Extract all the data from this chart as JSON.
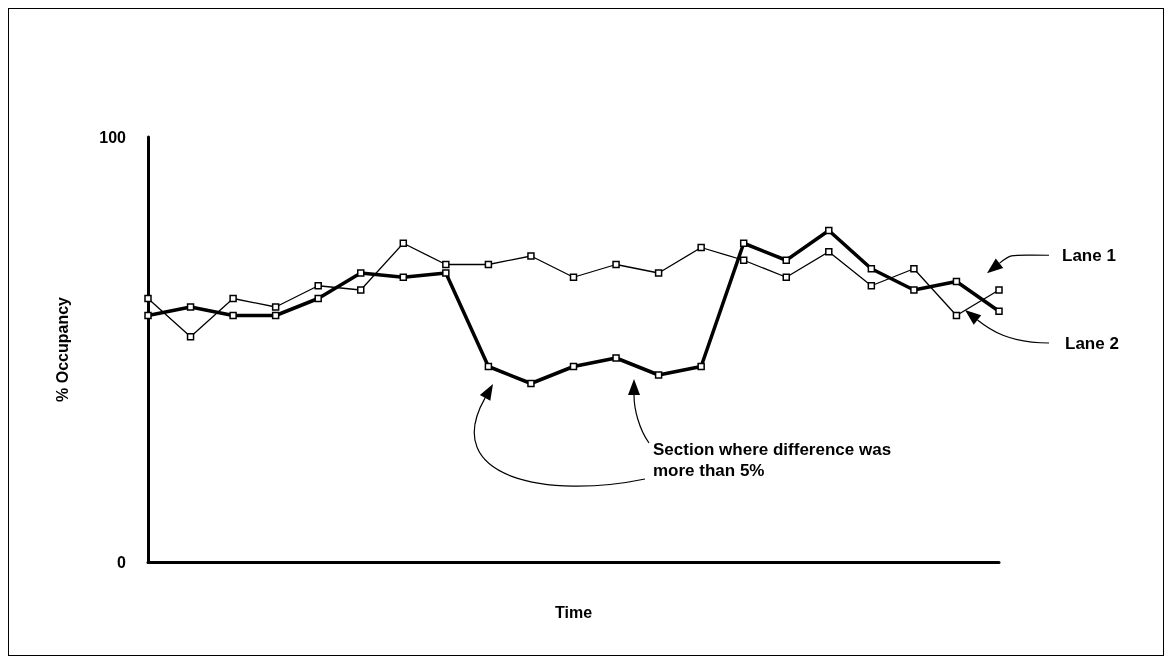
{
  "chart_data": {
    "type": "line",
    "xlabel": "Time",
    "ylabel": "% Occupancy",
    "categories": [
      null,
      null,
      null,
      null,
      null,
      null,
      null,
      null,
      null,
      null,
      null,
      null,
      null,
      null,
      null,
      null,
      null,
      null,
      null,
      null,
      null
    ],
    "series": [
      {
        "name": "Lane 1",
        "color": "#000000",
        "values": [
          58,
          60,
          58,
          58,
          62,
          68,
          67,
          68,
          46,
          42,
          46,
          48,
          44,
          46,
          75,
          71,
          78,
          69,
          64,
          66,
          59
        ]
      },
      {
        "name": "Lane 2",
        "color": "#000000",
        "values": [
          62,
          53,
          62,
          60,
          65,
          64,
          75,
          70,
          70,
          72,
          67,
          70,
          68,
          74,
          71,
          67,
          73,
          65,
          69,
          58,
          64
        ]
      }
    ],
    "ylim": [
      0,
      100
    ],
    "yticks": [
      0,
      100
    ],
    "marker": "square",
    "line_style": "solid",
    "grid": false,
    "legend": "right",
    "tick_labels": "y",
    "annotations": [
      "Section where difference was more than 5%"
    ]
  }
}
